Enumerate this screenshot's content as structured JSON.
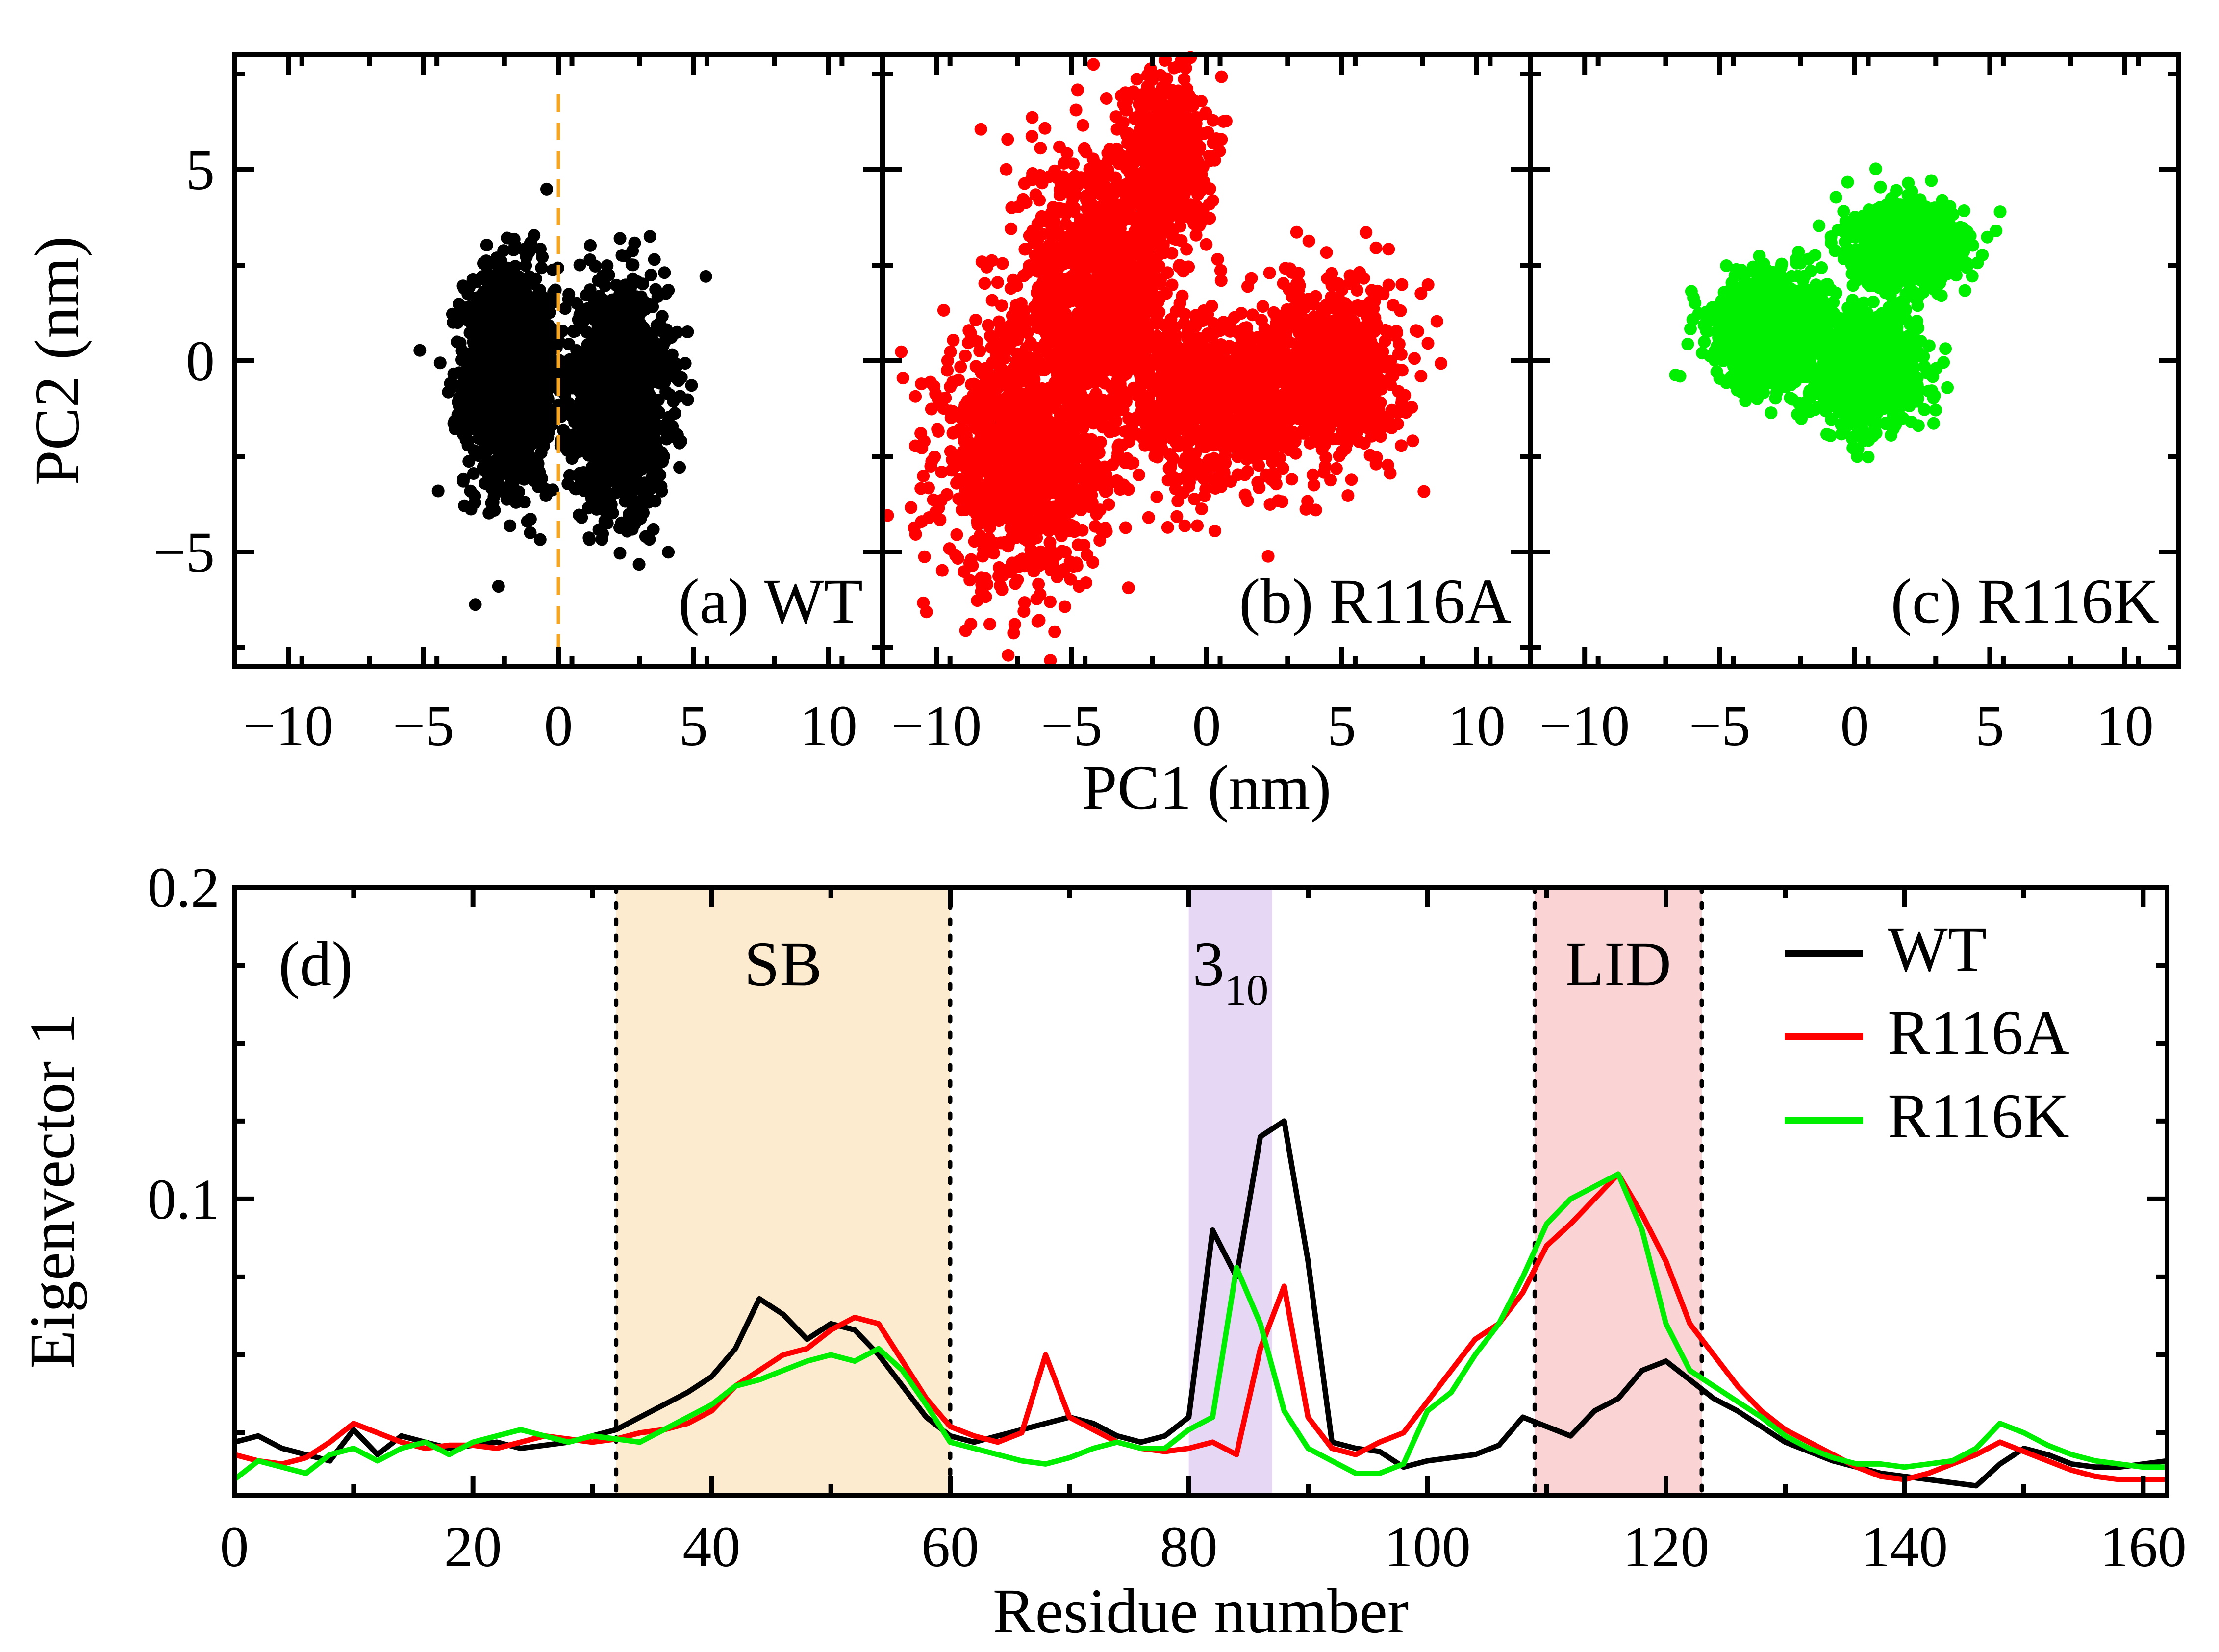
{
  "colors": {
    "wt": "#000000",
    "r116a": "#ff0000",
    "r116k": "#00ee00",
    "divider": "#f5a623",
    "sb_band": "#fdebd0",
    "h310_band": "#e6d7f5",
    "lid_band": "#fad4d4"
  },
  "chart_data": [
    {
      "type": "scatter",
      "panel": "(a) WT",
      "series_name": "WT",
      "color_key": "wt",
      "xlim": [
        -12,
        12
      ],
      "ylim": [
        -8,
        8
      ],
      "x_ticks": [
        -10,
        -5,
        0,
        5,
        10
      ],
      "x_tick_labels": [
        "−10",
        "−5",
        "0",
        "5",
        "10"
      ],
      "y_ticks": [
        -5,
        0,
        5
      ],
      "y_tick_labels": [
        "−5",
        "0",
        "5"
      ],
      "ylabel": "PC2 (nm)",
      "divider_x": 0,
      "clusters": [
        {
          "cx": -1.8,
          "cy": -0.4,
          "sx": 1.1,
          "sy": 1.9,
          "n": 1400
        },
        {
          "cx": 2.2,
          "cy": -0.9,
          "sx": 1.2,
          "sy": 1.9,
          "n": 1400
        }
      ]
    },
    {
      "type": "scatter",
      "panel": "(b) R116A",
      "series_name": "R116A",
      "color_key": "r116a",
      "xlim": [
        -12,
        12
      ],
      "ylim": [
        -8,
        8
      ],
      "x_ticks": [
        -10,
        -5,
        0,
        5,
        10
      ],
      "x_tick_labels": [
        "−10",
        "−5",
        "0",
        "5",
        "10"
      ],
      "xlabel": "PC1 (nm)",
      "clusters": [
        {
          "cx": -6.8,
          "cy": -2.5,
          "sx": 2.0,
          "sy": 2.2,
          "n": 1100
        },
        {
          "cx": -4.0,
          "cy": 2.0,
          "sx": 1.8,
          "sy": 2.5,
          "n": 1100
        },
        {
          "cx": -1.5,
          "cy": 5.5,
          "sx": 1.0,
          "sy": 1.4,
          "n": 500
        },
        {
          "cx": 0.5,
          "cy": -1.0,
          "sx": 2.4,
          "sy": 1.6,
          "n": 900
        },
        {
          "cx": 4.8,
          "cy": -0.2,
          "sx": 1.6,
          "sy": 1.5,
          "n": 700
        }
      ]
    },
    {
      "type": "scatter",
      "panel": "(c) R116K",
      "series_name": "R116K",
      "color_key": "r116k",
      "xlim": [
        -12,
        12
      ],
      "ylim": [
        -8,
        8
      ],
      "x_ticks": [
        -10,
        -5,
        0,
        5,
        10
      ],
      "x_tick_labels": [
        "−10",
        "−5",
        "0",
        "5",
        "10"
      ],
      "clusters": [
        {
          "cx": -3.0,
          "cy": 0.8,
          "sx": 1.5,
          "sy": 1.0,
          "n": 1000
        },
        {
          "cx": 2.0,
          "cy": 3.0,
          "sx": 1.4,
          "sy": 0.7,
          "n": 900
        },
        {
          "cx": 0.5,
          "cy": -0.2,
          "sx": 1.3,
          "sy": 1.0,
          "n": 800
        }
      ]
    },
    {
      "type": "line",
      "panel": "(d)",
      "xlabel": "Residue number",
      "ylabel": "Eigenvector 1",
      "xlim": [
        0,
        162
      ],
      "ylim": [
        0.005,
        0.2
      ],
      "x_ticks": [
        0,
        20,
        40,
        60,
        80,
        100,
        120,
        140,
        160
      ],
      "x_tick_labels": [
        "0",
        "20",
        "40",
        "60",
        "80",
        "100",
        "120",
        "140",
        "160"
      ],
      "y_ticks": [
        0.1,
        0.2
      ],
      "y_tick_labels": [
        "0.1",
        "0.2"
      ],
      "regions": [
        {
          "name": "SB",
          "x0": 32,
          "x1": 60,
          "color_key": "sb_band",
          "dotted": true
        },
        {
          "name": "3",
          "sub": "10",
          "x0": 80,
          "x1": 87,
          "color_key": "h310_band",
          "dotted": false
        },
        {
          "name": "LID",
          "x0": 109,
          "x1": 123,
          "color_key": "lid_band",
          "dotted": true
        }
      ],
      "legend": [
        "WT",
        "R116A",
        "R116K"
      ],
      "series": [
        {
          "name": "WT",
          "color_key": "wt",
          "x": [
            0,
            2,
            4,
            6,
            8,
            10,
            12,
            14,
            16,
            18,
            20,
            22,
            24,
            26,
            28,
            30,
            32,
            34,
            36,
            38,
            40,
            42,
            44,
            46,
            48,
            50,
            52,
            54,
            56,
            58,
            60,
            62,
            64,
            66,
            68,
            70,
            72,
            74,
            76,
            78,
            80,
            82,
            84,
            86,
            88,
            90,
            92,
            94,
            96,
            98,
            100,
            102,
            104,
            106,
            108,
            110,
            112,
            114,
            116,
            118,
            120,
            122,
            124,
            126,
            128,
            130,
            132,
            134,
            136,
            138,
            140,
            142,
            144,
            146,
            148,
            150,
            152,
            154,
            156,
            158,
            160,
            162
          ],
          "values": [
            0.022,
            0.024,
            0.02,
            0.018,
            0.016,
            0.026,
            0.018,
            0.024,
            0.022,
            0.02,
            0.021,
            0.022,
            0.02,
            0.021,
            0.022,
            0.024,
            0.026,
            0.03,
            0.034,
            0.038,
            0.043,
            0.052,
            0.068,
            0.063,
            0.055,
            0.06,
            0.058,
            0.05,
            0.04,
            0.03,
            0.024,
            0.022,
            0.024,
            0.026,
            0.028,
            0.03,
            0.028,
            0.024,
            0.022,
            0.024,
            0.03,
            0.09,
            0.075,
            0.12,
            0.125,
            0.08,
            0.022,
            0.02,
            0.019,
            0.014,
            0.016,
            0.017,
            0.018,
            0.021,
            0.03,
            0.027,
            0.024,
            0.032,
            0.036,
            0.045,
            0.048,
            0.042,
            0.036,
            0.032,
            0.027,
            0.022,
            0.019,
            0.016,
            0.014,
            0.012,
            0.011,
            0.01,
            0.009,
            0.008,
            0.015,
            0.02,
            0.018,
            0.015,
            0.014,
            0.014,
            0.015,
            0.016
          ]
        },
        {
          "name": "R116A",
          "color_key": "r116a",
          "x": [
            0,
            2,
            4,
            6,
            8,
            10,
            12,
            14,
            16,
            18,
            20,
            22,
            24,
            26,
            28,
            30,
            32,
            34,
            36,
            38,
            40,
            42,
            44,
            46,
            48,
            50,
            52,
            54,
            56,
            58,
            60,
            62,
            64,
            66,
            68,
            70,
            72,
            74,
            76,
            78,
            80,
            82,
            84,
            86,
            88,
            90,
            92,
            94,
            96,
            98,
            100,
            102,
            104,
            106,
            108,
            110,
            112,
            114,
            116,
            118,
            120,
            122,
            124,
            126,
            128,
            130,
            132,
            134,
            136,
            138,
            140,
            142,
            144,
            146,
            148,
            150,
            152,
            154,
            156,
            158,
            160,
            162
          ],
          "values": [
            0.018,
            0.016,
            0.015,
            0.017,
            0.022,
            0.028,
            0.025,
            0.022,
            0.02,
            0.021,
            0.021,
            0.02,
            0.022,
            0.024,
            0.023,
            0.022,
            0.023,
            0.025,
            0.026,
            0.028,
            0.032,
            0.04,
            0.045,
            0.05,
            0.052,
            0.058,
            0.062,
            0.06,
            0.048,
            0.036,
            0.027,
            0.024,
            0.022,
            0.025,
            0.05,
            0.03,
            0.026,
            0.022,
            0.02,
            0.019,
            0.02,
            0.022,
            0.018,
            0.052,
            0.072,
            0.03,
            0.02,
            0.018,
            0.022,
            0.025,
            0.035,
            0.045,
            0.055,
            0.06,
            0.07,
            0.085,
            0.092,
            0.1,
            0.108,
            0.095,
            0.08,
            0.06,
            0.05,
            0.04,
            0.032,
            0.026,
            0.022,
            0.018,
            0.014,
            0.011,
            0.01,
            0.012,
            0.015,
            0.018,
            0.022,
            0.019,
            0.016,
            0.013,
            0.011,
            0.01,
            0.01,
            0.01
          ]
        },
        {
          "name": "R116K",
          "color_key": "r116k",
          "x": [
            0,
            2,
            4,
            6,
            8,
            10,
            12,
            14,
            16,
            18,
            20,
            22,
            24,
            26,
            28,
            30,
            32,
            34,
            36,
            38,
            40,
            42,
            44,
            46,
            48,
            50,
            52,
            54,
            56,
            58,
            60,
            62,
            64,
            66,
            68,
            70,
            72,
            74,
            76,
            78,
            80,
            82,
            84,
            86,
            88,
            90,
            92,
            94,
            96,
            98,
            100,
            102,
            104,
            106,
            108,
            110,
            112,
            114,
            116,
            118,
            120,
            122,
            124,
            126,
            128,
            130,
            132,
            134,
            136,
            138,
            140,
            142,
            144,
            146,
            148,
            150,
            152,
            154,
            156,
            158,
            160,
            162
          ],
          "values": [
            0.01,
            0.016,
            0.014,
            0.012,
            0.018,
            0.02,
            0.016,
            0.02,
            0.022,
            0.018,
            0.022,
            0.024,
            0.026,
            0.024,
            0.022,
            0.024,
            0.023,
            0.022,
            0.026,
            0.03,
            0.034,
            0.04,
            0.042,
            0.045,
            0.048,
            0.05,
            0.048,
            0.052,
            0.045,
            0.034,
            0.022,
            0.02,
            0.018,
            0.016,
            0.015,
            0.017,
            0.02,
            0.022,
            0.02,
            0.02,
            0.026,
            0.03,
            0.078,
            0.06,
            0.032,
            0.02,
            0.016,
            0.012,
            0.012,
            0.015,
            0.032,
            0.038,
            0.05,
            0.06,
            0.075,
            0.092,
            0.1,
            0.104,
            0.108,
            0.09,
            0.06,
            0.045,
            0.04,
            0.035,
            0.03,
            0.024,
            0.02,
            0.017,
            0.015,
            0.015,
            0.014,
            0.015,
            0.016,
            0.02,
            0.028,
            0.025,
            0.021,
            0.018,
            0.016,
            0.015,
            0.014,
            0.014
          ]
        }
      ]
    }
  ]
}
